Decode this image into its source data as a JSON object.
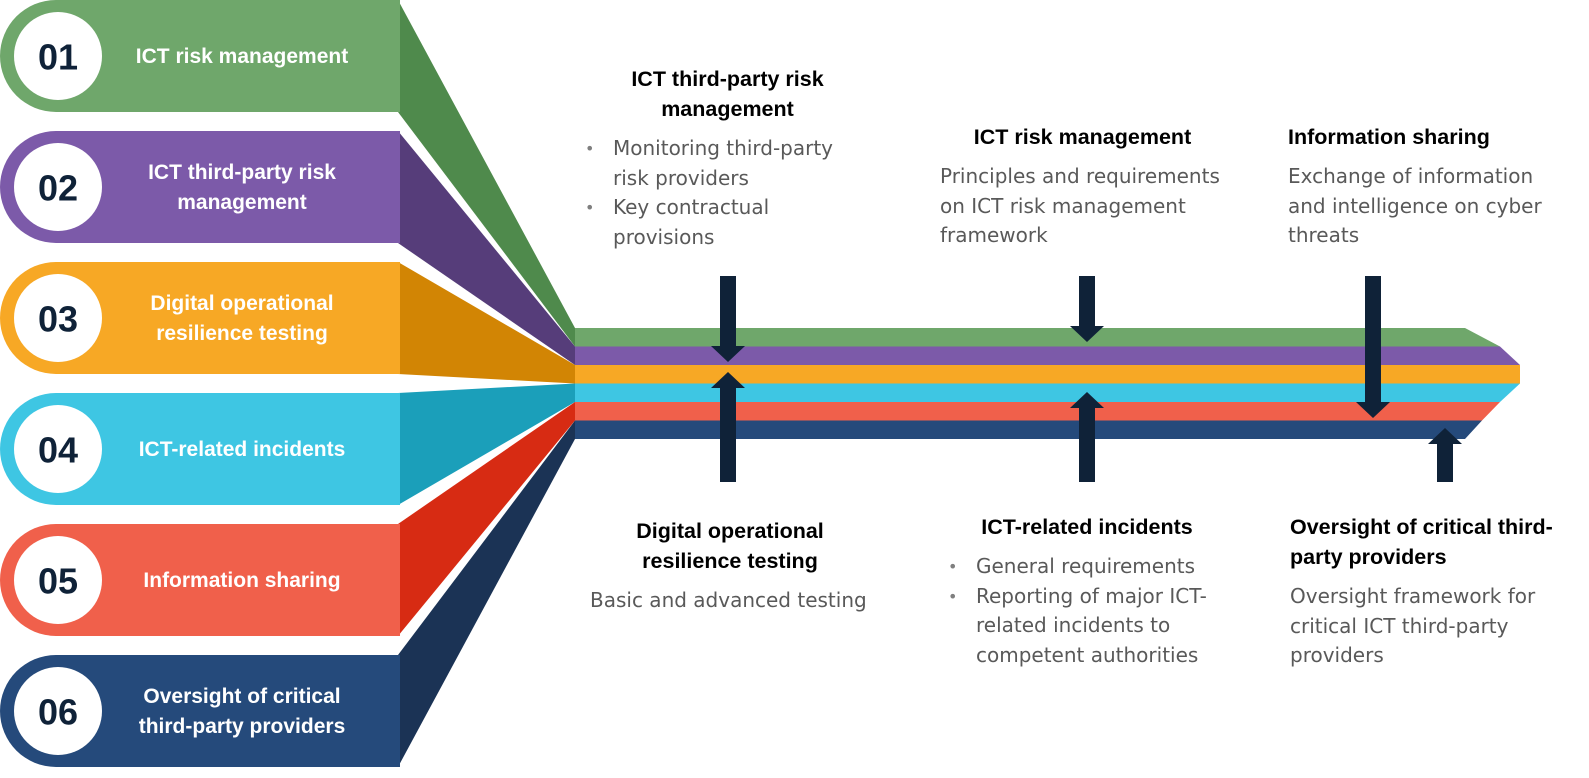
{
  "pillars": [
    {
      "number": "01",
      "label": [
        "ICT risk management"
      ],
      "color": "#6fa76b",
      "dark": "#4f8a4c"
    },
    {
      "number": "02",
      "label": [
        "ICT third-party risk",
        "management"
      ],
      "color": "#7c5aa9",
      "dark": "#563d7a"
    },
    {
      "number": "03",
      "label": [
        "Digital operational",
        "resilience testing"
      ],
      "color": "#f7a825",
      "dark": "#d28504"
    },
    {
      "number": "04",
      "label": [
        "ICT-related incidents"
      ],
      "color": "#3ec6e3",
      "dark": "#1b9fba"
    },
    {
      "number": "05",
      "label": [
        "Information sharing"
      ],
      "color": "#f0604b",
      "dark": "#d72b13"
    },
    {
      "number": "06",
      "label": [
        "Oversight of critical",
        "third-party providers"
      ],
      "color": "#254a7b",
      "dark": "#1b3355"
    }
  ],
  "stripes": [
    "#6fa76b",
    "#7c5aa9",
    "#f7a825",
    "#3ec6e3",
    "#f0604b",
    "#254a7b"
  ],
  "arrow_color": "#0f2238",
  "top_blocks": {
    "third_party": {
      "title": "ICT third-party risk management",
      "bullets": [
        "Monitoring third-party risk providers",
        "Key contractual provisions"
      ]
    },
    "risk": {
      "title": "ICT risk management",
      "text": "Principles and requirements on ICT risk management framework"
    },
    "sharing": {
      "title": "Information sharing",
      "text": "Exchange of information and intelligence on cyber threats"
    }
  },
  "bottom_blocks": {
    "testing": {
      "title": "Digital operational resilience testing",
      "text": "Basic and advanced testing"
    },
    "incidents": {
      "title": "ICT-related incidents",
      "bullets": [
        "General requirements",
        "Reporting of major ICT-related incidents to competent authorities"
      ]
    },
    "oversight": {
      "title": "Oversight of critical third-party providers",
      "text": "Oversight framework for critical ICT third-party providers"
    }
  }
}
